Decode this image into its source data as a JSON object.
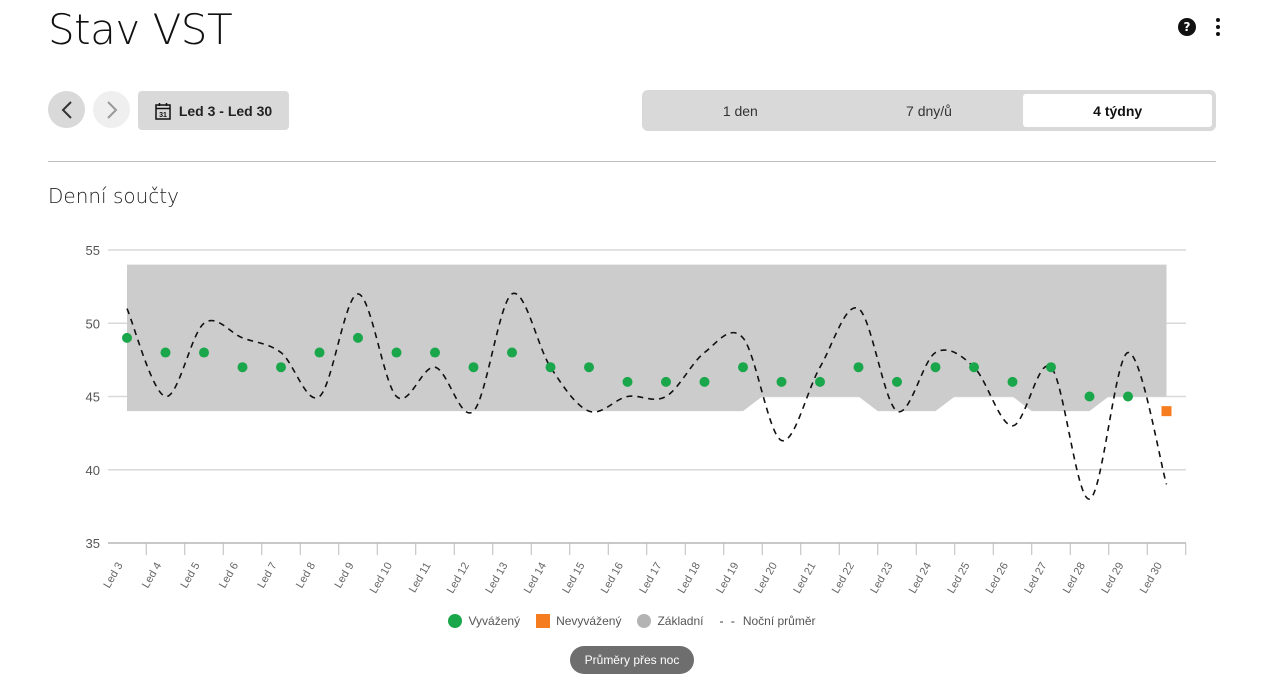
{
  "header": {
    "title": "Stav VST",
    "help_icon": "question-circle-icon",
    "menu_icon": "more-vertical-icon"
  },
  "toolbar": {
    "prev_icon": "chevron-left-icon",
    "next_icon": "chevron-right-icon",
    "date_range_label": "Led 3 - Led 30",
    "calendar_day": "31",
    "periods": [
      {
        "label": "1 den",
        "active": false
      },
      {
        "label": "7 dny/ů",
        "active": false
      },
      {
        "label": "4 týdny",
        "active": true
      }
    ]
  },
  "section": {
    "title": "Denní součty"
  },
  "chart_data": {
    "type": "scatter",
    "title": "",
    "xlabel": "",
    "ylabel": "",
    "ylim": [
      35,
      55
    ],
    "yticks": [
      35,
      40,
      45,
      50,
      55
    ],
    "grid": true,
    "legend_position": "bottom",
    "categories": [
      "Led 3",
      "Led 4",
      "Led 5",
      "Led 6",
      "Led 7",
      "Led 8",
      "Led 9",
      "Led 10",
      "Led 11",
      "Led 12",
      "Led 13",
      "Led 14",
      "Led 15",
      "Led 16",
      "Led 17",
      "Led 18",
      "Led 19",
      "Led 20",
      "Led 21",
      "Led 22",
      "Led 23",
      "Led 24",
      "Led 25",
      "Led 26",
      "Led 27",
      "Led 28",
      "Led 29",
      "Led 30"
    ],
    "series": [
      {
        "name": "Vyvážený",
        "color": "#1aa64a",
        "marker": "circle",
        "values": [
          49,
          48,
          48,
          47,
          47,
          48,
          49,
          48,
          48,
          47,
          48,
          47,
          47,
          46,
          46,
          46,
          47,
          46,
          46,
          47,
          46,
          47,
          47,
          46,
          47,
          45,
          45,
          null
        ]
      },
      {
        "name": "Nevyvážený",
        "color": "#f57c1f",
        "marker": "square",
        "values": [
          null,
          null,
          null,
          null,
          null,
          null,
          null,
          null,
          null,
          null,
          null,
          null,
          null,
          null,
          null,
          null,
          null,
          null,
          null,
          null,
          null,
          null,
          null,
          null,
          null,
          null,
          null,
          44
        ]
      },
      {
        "name": "Základní",
        "color": "#cccccc",
        "type": "band",
        "upper": [
          54,
          54,
          54,
          54,
          54,
          54,
          54,
          54,
          54,
          54,
          54,
          54,
          54,
          54,
          54,
          54,
          54,
          54,
          54,
          54,
          54,
          54,
          54,
          54,
          54,
          54,
          54,
          54
        ],
        "lower": [
          44,
          44,
          44,
          44,
          44,
          44,
          44,
          44,
          44,
          44,
          44,
          44,
          44,
          44,
          44,
          44,
          44,
          45,
          45,
          45,
          44,
          44,
          45,
          45,
          44,
          44,
          45,
          45
        ]
      },
      {
        "name": "Noční průměr",
        "color": "#111111",
        "type": "dashed-line",
        "values": [
          51,
          45,
          50,
          49,
          48,
          45,
          52,
          45,
          47,
          44,
          52,
          47,
          44,
          45,
          45,
          48,
          49,
          42,
          47,
          51,
          44,
          48,
          47,
          43,
          47,
          38,
          48,
          39
        ]
      }
    ]
  },
  "legend": {
    "balanced": "Vyvážený",
    "unbalanced": "Nevyvážený",
    "baseline": "Základní",
    "night_avg_symbol": "- -",
    "night_avg": "Noční průměr"
  },
  "footer": {
    "pill_label": "Průměry přes noc"
  }
}
